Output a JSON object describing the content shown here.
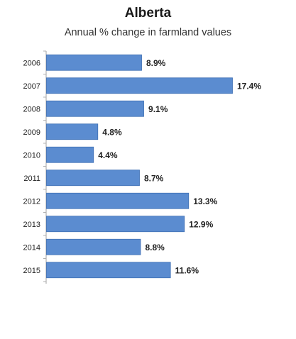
{
  "chart_data": {
    "type": "bar",
    "orientation": "horizontal",
    "title": "Alberta",
    "subtitle": "Annual % change in farmland values",
    "categories": [
      "2006",
      "2007",
      "2008",
      "2009",
      "2010",
      "2011",
      "2012",
      "2013",
      "2014",
      "2015"
    ],
    "values": [
      8.9,
      17.4,
      9.1,
      4.8,
      4.4,
      8.7,
      13.3,
      12.9,
      8.8,
      11.6
    ],
    "data_labels": [
      "8.9%",
      "17.4%",
      "9.1%",
      "4.8%",
      "4.4%",
      "8.7%",
      "13.3%",
      "12.9%",
      "8.8%",
      "11.6%"
    ],
    "xlabel": "",
    "ylabel": "",
    "xlim": [
      0,
      17.4
    ],
    "grid": false,
    "legend": "none",
    "bar_color": "#5b8cd0",
    "bar_edge_color": "#3f6fb3"
  }
}
